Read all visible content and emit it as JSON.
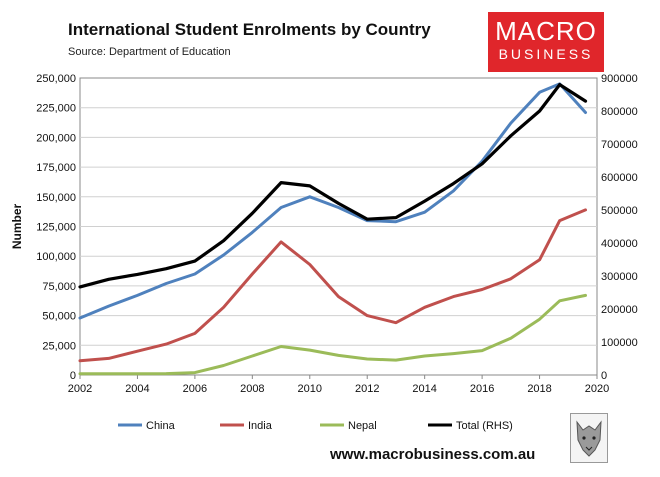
{
  "chart_data": {
    "type": "line",
    "title": "International Student Enrolments by Country",
    "subtitle": "Source: Department of Education",
    "xlabel": "",
    "ylabel": "Number",
    "x": [
      2002,
      2003,
      2004,
      2005,
      2006,
      2007,
      2008,
      2009,
      2010,
      2011,
      2012,
      2013,
      2014,
      2015,
      2016,
      2017,
      2018,
      2019
    ],
    "xlim": [
      2002,
      2020
    ],
    "xticks": [
      "2002",
      "2004",
      "2006",
      "2008",
      "2010",
      "2012",
      "2014",
      "2016",
      "2018",
      "2020"
    ],
    "ylim": [
      0,
      250000
    ],
    "yticks": [
      "0",
      "25,000",
      "50,000",
      "75,000",
      "100,000",
      "125,000",
      "150,000",
      "175,000",
      "200,000",
      "225,000",
      "250,000"
    ],
    "y2lim": [
      0,
      900000
    ],
    "y2ticks": [
      "0",
      "100000",
      "200000",
      "300000",
      "400000",
      "500000",
      "600000",
      "700000",
      "800000",
      "900000"
    ],
    "series": [
      {
        "name": "China",
        "color": "#4f81bd",
        "axis": "left",
        "values": [
          48000,
          58000,
          67000,
          77000,
          85000,
          101000,
          120000,
          141000,
          150000,
          141000,
          130000,
          129000,
          137000,
          155000,
          180000,
          212000,
          238000,
          245000,
          221000
        ],
        "x": [
          2002,
          2003,
          2004,
          2005,
          2006,
          2007,
          2008,
          2009,
          2010,
          2011,
          2012,
          2013,
          2014,
          2015,
          2016,
          2017,
          2018,
          2018.7,
          2019.6
        ]
      },
      {
        "name": "India",
        "color": "#c0504d",
        "axis": "left",
        "values": [
          12000,
          14000,
          20000,
          26000,
          35000,
          57000,
          85000,
          112000,
          93000,
          66000,
          50000,
          44000,
          57000,
          66000,
          72000,
          81000,
          97000,
          130000,
          139000
        ],
        "x": [
          2002,
          2003,
          2004,
          2005,
          2006,
          2007,
          2008,
          2009,
          2010,
          2011,
          2012,
          2013,
          2014,
          2015,
          2016,
          2017,
          2018,
          2018.7,
          2019.6
        ]
      },
      {
        "name": "Nepal",
        "color": "#9bbb59",
        "axis": "left",
        "values": [
          1000,
          1000,
          1000,
          1200,
          2000,
          8000,
          16000,
          24000,
          21000,
          16500,
          13500,
          12500,
          16000,
          18000,
          20500,
          31000,
          47000,
          62500,
          67000
        ],
        "x": [
          2002,
          2003,
          2004,
          2005,
          2006,
          2007,
          2008,
          2009,
          2010,
          2011,
          2012,
          2013,
          2014,
          2015,
          2016,
          2017,
          2018,
          2018.7,
          2019.6
        ]
      },
      {
        "name": "Total (RHS)",
        "color": "#000000",
        "axis": "right",
        "values": [
          267000,
          290000,
          305000,
          322000,
          345000,
          407000,
          490000,
          583000,
          573000,
          520000,
          472000,
          477000,
          527000,
          580000,
          640000,
          725000,
          800000,
          880000,
          830000
        ],
        "x": [
          2002,
          2003,
          2004,
          2005,
          2006,
          2007,
          2008,
          2009,
          2010,
          2011,
          2012,
          2013,
          2014,
          2015,
          2016,
          2017,
          2018,
          2018.7,
          2019.6
        ]
      }
    ],
    "legend": "bottom",
    "grid": "horizontal"
  },
  "brand": {
    "logo_line1": "MACRO",
    "logo_line2": "BUSINESS",
    "logo_color": "#e0262b",
    "url": "www.macrobusiness.com.au"
  }
}
